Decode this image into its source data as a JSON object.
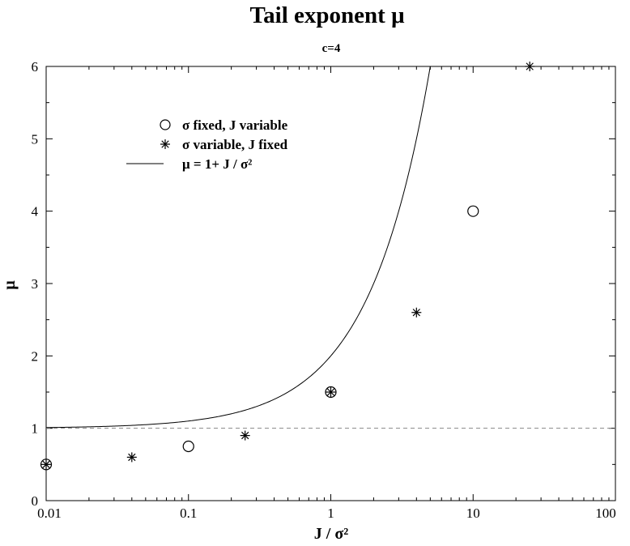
{
  "chart_data": {
    "type": "scatter",
    "title": "Tail exponent μ",
    "subtitle": "c=4",
    "xlabel": "J / σ²",
    "ylabel": "μ",
    "xscale": "log",
    "xlim": [
      0.01,
      100
    ],
    "ylim": [
      0,
      6
    ],
    "xticks": [
      "0.01",
      "0.1",
      "1",
      "10",
      "100"
    ],
    "xtick_values": [
      0.01,
      0.1,
      1,
      10,
      100
    ],
    "yticks": [
      "0",
      "1",
      "2",
      "3",
      "4",
      "5",
      "6"
    ],
    "ytick_values": [
      0,
      1,
      2,
      3,
      4,
      5,
      6
    ],
    "grid": false,
    "legend_position": "top-left",
    "series": [
      {
        "name": "σ fixed, J  variable",
        "marker": "circle",
        "x": [
          0.01,
          0.1,
          1,
          10
        ],
        "y": [
          0.5,
          0.75,
          1.5,
          4
        ]
      },
      {
        "name": "σ variable, J  fixed",
        "marker": "asterisk",
        "x": [
          0.01,
          0.04,
          0.25,
          1,
          4,
          25
        ],
        "y": [
          0.5,
          0.6,
          0.9,
          1.5,
          2.6,
          6
        ]
      },
      {
        "name": "μ = 1+ J / σ²",
        "marker": "line",
        "function": "1 + x",
        "x_range": [
          0.01,
          100
        ]
      }
    ],
    "reference_line": {
      "y": 1,
      "style": "dashed"
    }
  }
}
